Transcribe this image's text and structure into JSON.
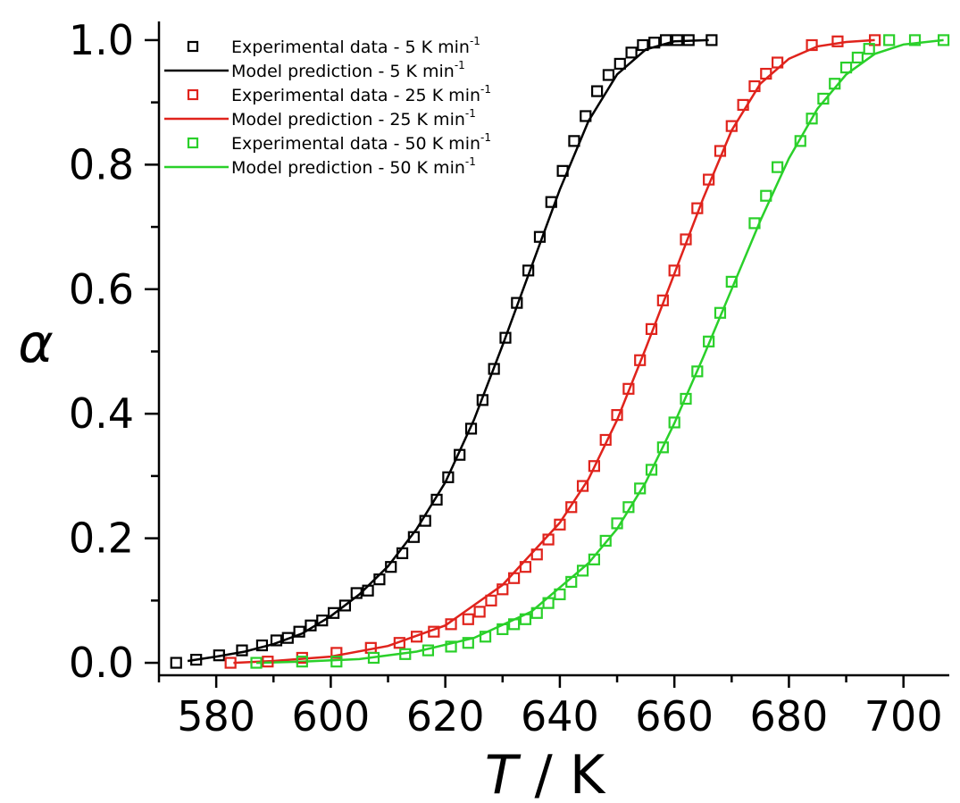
{
  "chart_data": {
    "type": "line",
    "xlabel": "T",
    "xlabel_unit": " / K",
    "ylabel": "α",
    "xlim": [
      570,
      708
    ],
    "ylim": [
      -0.02,
      1.03
    ],
    "xticks": [
      580,
      600,
      620,
      640,
      660,
      680,
      700
    ],
    "yticks": [
      0.0,
      0.2,
      0.4,
      0.6,
      0.8,
      1.0
    ],
    "xtick_labels": [
      "580",
      "600",
      "620",
      "640",
      "660",
      "680",
      "700"
    ],
    "ytick_labels": [
      "0.0",
      "0.2",
      "0.4",
      "0.6",
      "0.8",
      "1.0"
    ],
    "grid": false,
    "legend_position": "top-left",
    "series": [
      {
        "name": "Experimental data - 5 K min",
        "superscript": "-1",
        "kind": "scatter",
        "color": "#000000",
        "points": [
          [
            573,
            0.0
          ],
          [
            576.5,
            0.005
          ],
          [
            580.5,
            0.012
          ],
          [
            584.5,
            0.02
          ],
          [
            588,
            0.028
          ],
          [
            590.5,
            0.036
          ],
          [
            592.5,
            0.04
          ],
          [
            594.5,
            0.05
          ],
          [
            596.5,
            0.06
          ],
          [
            598.5,
            0.068
          ],
          [
            600.5,
            0.08
          ],
          [
            602.5,
            0.092
          ],
          [
            604.5,
            0.112
          ],
          [
            606.5,
            0.116
          ],
          [
            608.5,
            0.134
          ],
          [
            610.5,
            0.154
          ],
          [
            612.5,
            0.176
          ],
          [
            614.5,
            0.202
          ],
          [
            616.5,
            0.228
          ],
          [
            618.5,
            0.262
          ],
          [
            620.5,
            0.298
          ],
          [
            622.5,
            0.334
          ],
          [
            624.5,
            0.376
          ],
          [
            626.5,
            0.422
          ],
          [
            628.5,
            0.472
          ],
          [
            630.5,
            0.522
          ],
          [
            632.5,
            0.578
          ],
          [
            634.5,
            0.63
          ],
          [
            636.5,
            0.684
          ],
          [
            638.5,
            0.74
          ],
          [
            640.5,
            0.79
          ],
          [
            642.5,
            0.838
          ],
          [
            644.5,
            0.878
          ],
          [
            646.5,
            0.918
          ],
          [
            648.5,
            0.944
          ],
          [
            650.5,
            0.962
          ],
          [
            652.5,
            0.98
          ],
          [
            654.5,
            0.992
          ],
          [
            656.5,
            0.996
          ],
          [
            658.5,
            1.0
          ],
          [
            660.5,
            1.0
          ],
          [
            662.5,
            1.0
          ],
          [
            666.5,
            1.0
          ]
        ]
      },
      {
        "name": "Model prediction - 5 K min",
        "superscript": "-1",
        "kind": "line",
        "color": "#000000",
        "points": [
          [
            575,
            0.003
          ],
          [
            580,
            0.01
          ],
          [
            585,
            0.018
          ],
          [
            590,
            0.03
          ],
          [
            595,
            0.047
          ],
          [
            600,
            0.075
          ],
          [
            605,
            0.11
          ],
          [
            610,
            0.155
          ],
          [
            615,
            0.215
          ],
          [
            620,
            0.29
          ],
          [
            625,
            0.39
          ],
          [
            630,
            0.51
          ],
          [
            635,
            0.635
          ],
          [
            640,
            0.76
          ],
          [
            645,
            0.87
          ],
          [
            650,
            0.945
          ],
          [
            655,
            0.985
          ],
          [
            660,
            0.998
          ],
          [
            666,
            1.0
          ]
        ]
      },
      {
        "name": "Experimental data - 25 K min",
        "superscript": "-1",
        "kind": "scatter",
        "color": "#e0231c",
        "points": [
          [
            582.5,
            0.0
          ],
          [
            589,
            0.002
          ],
          [
            595,
            0.008
          ],
          [
            601,
            0.016
          ],
          [
            607,
            0.024
          ],
          [
            612,
            0.032
          ],
          [
            615,
            0.042
          ],
          [
            618,
            0.05
          ],
          [
            621,
            0.062
          ],
          [
            624,
            0.07
          ],
          [
            626,
            0.082
          ],
          [
            628,
            0.1
          ],
          [
            630,
            0.118
          ],
          [
            632,
            0.136
          ],
          [
            634,
            0.154
          ],
          [
            636,
            0.174
          ],
          [
            638,
            0.198
          ],
          [
            640,
            0.222
          ],
          [
            642,
            0.25
          ],
          [
            644,
            0.284
          ],
          [
            646,
            0.316
          ],
          [
            648,
            0.358
          ],
          [
            650,
            0.398
          ],
          [
            652,
            0.44
          ],
          [
            654,
            0.486
          ],
          [
            656,
            0.536
          ],
          [
            658,
            0.582
          ],
          [
            660,
            0.63
          ],
          [
            662,
            0.68
          ],
          [
            664,
            0.73
          ],
          [
            666,
            0.776
          ],
          [
            668,
            0.822
          ],
          [
            670,
            0.862
          ],
          [
            672,
            0.896
          ],
          [
            674,
            0.926
          ],
          [
            676,
            0.946
          ],
          [
            678,
            0.964
          ],
          [
            684,
            0.992
          ],
          [
            688.5,
            0.998
          ],
          [
            695,
            1.0
          ]
        ]
      },
      {
        "name": "Model prediction - 25 K min",
        "superscript": "-1",
        "kind": "line",
        "color": "#e0231c",
        "points": [
          [
            583,
            0.0
          ],
          [
            590,
            0.003
          ],
          [
            600,
            0.01
          ],
          [
            610,
            0.027
          ],
          [
            620,
            0.06
          ],
          [
            630,
            0.125
          ],
          [
            640,
            0.225
          ],
          [
            645,
            0.295
          ],
          [
            650,
            0.39
          ],
          [
            655,
            0.505
          ],
          [
            660,
            0.625
          ],
          [
            665,
            0.745
          ],
          [
            670,
            0.855
          ],
          [
            675,
            0.93
          ],
          [
            680,
            0.97
          ],
          [
            685,
            0.99
          ],
          [
            690,
            0.997
          ],
          [
            695,
            1.0
          ]
        ]
      },
      {
        "name": "Experimental data - 50 K min",
        "superscript": "-1",
        "kind": "scatter",
        "color": "#2ad02a",
        "points": [
          [
            587,
            0.0
          ],
          [
            595,
            0.002
          ],
          [
            601,
            0.002
          ],
          [
            607.5,
            0.008
          ],
          [
            613,
            0.014
          ],
          [
            617,
            0.02
          ],
          [
            621,
            0.026
          ],
          [
            624,
            0.032
          ],
          [
            627,
            0.042
          ],
          [
            630,
            0.054
          ],
          [
            632,
            0.062
          ],
          [
            634,
            0.07
          ],
          [
            636,
            0.08
          ],
          [
            638,
            0.096
          ],
          [
            640,
            0.11
          ],
          [
            642,
            0.13
          ],
          [
            644,
            0.148
          ],
          [
            646,
            0.166
          ],
          [
            648,
            0.196
          ],
          [
            650,
            0.224
          ],
          [
            652,
            0.25
          ],
          [
            654,
            0.28
          ],
          [
            656,
            0.31
          ],
          [
            658,
            0.346
          ],
          [
            660,
            0.386
          ],
          [
            662,
            0.424
          ],
          [
            664,
            0.468
          ],
          [
            666,
            0.516
          ],
          [
            668,
            0.562
          ],
          [
            670,
            0.612
          ],
          [
            674,
            0.706
          ],
          [
            676,
            0.75
          ],
          [
            678,
            0.796
          ],
          [
            682,
            0.838
          ],
          [
            684,
            0.874
          ],
          [
            686,
            0.906
          ],
          [
            688,
            0.93
          ],
          [
            690,
            0.956
          ],
          [
            692,
            0.972
          ],
          [
            694,
            0.986
          ],
          [
            697.5,
            1.0
          ],
          [
            702,
            1.0
          ],
          [
            707,
            1.0
          ]
        ]
      },
      {
        "name": "Model prediction - 50 K min",
        "superscript": "-1",
        "kind": "line",
        "color": "#2ad02a",
        "points": [
          [
            587,
            0.0
          ],
          [
            595,
            0.002
          ],
          [
            605,
            0.006
          ],
          [
            615,
            0.018
          ],
          [
            625,
            0.04
          ],
          [
            635,
            0.082
          ],
          [
            645,
            0.16
          ],
          [
            650,
            0.215
          ],
          [
            655,
            0.29
          ],
          [
            660,
            0.385
          ],
          [
            665,
            0.49
          ],
          [
            670,
            0.6
          ],
          [
            675,
            0.71
          ],
          [
            680,
            0.81
          ],
          [
            685,
            0.89
          ],
          [
            690,
            0.945
          ],
          [
            695,
            0.978
          ],
          [
            700,
            0.993
          ],
          [
            707,
            1.0
          ]
        ]
      }
    ]
  }
}
